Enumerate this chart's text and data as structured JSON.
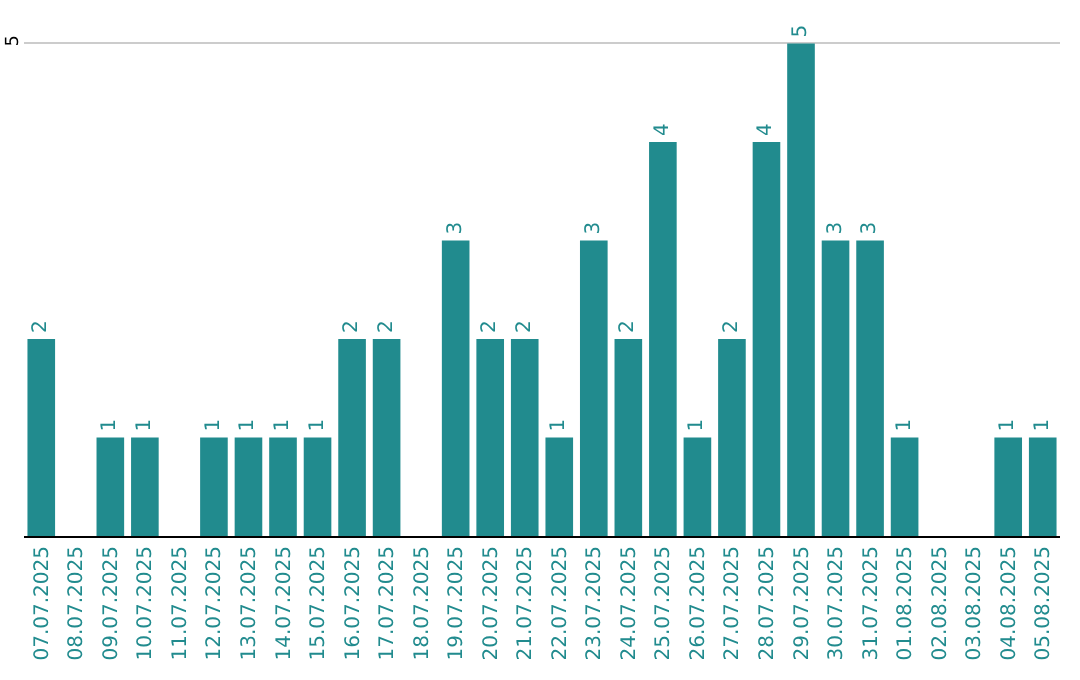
{
  "chart_data": {
    "type": "bar",
    "categories": [
      "07.07.2025",
      "08.07.2025",
      "09.07.2025",
      "10.07.2025",
      "11.07.2025",
      "12.07.2025",
      "13.07.2025",
      "14.07.2025",
      "15.07.2025",
      "16.07.2025",
      "17.07.2025",
      "18.07.2025",
      "19.07.2025",
      "20.07.2025",
      "21.07.2025",
      "22.07.2025",
      "23.07.2025",
      "24.07.2025",
      "25.07.2025",
      "26.07.2025",
      "27.07.2025",
      "28.07.2025",
      "29.07.2025",
      "30.07.2025",
      "31.07.2025",
      "01.08.2025",
      "02.08.2025",
      "03.08.2025",
      "04.08.2025",
      "05.08.2025"
    ],
    "values": [
      2,
      0,
      1,
      1,
      0,
      1,
      1,
      1,
      1,
      2,
      2,
      0,
      3,
      2,
      2,
      1,
      3,
      2,
      4,
      1,
      2,
      4,
      5,
      3,
      3,
      1,
      0,
      0,
      1,
      1
    ],
    "value_labels": [
      "2",
      null,
      "1",
      "1",
      null,
      "1",
      "1",
      "1",
      "1",
      "2",
      "2",
      null,
      "3",
      "2",
      "2",
      "1",
      "3",
      "2",
      "4",
      "1",
      "2",
      "4",
      "5",
      "3",
      "3",
      "1",
      null,
      null,
      "1",
      "1"
    ],
    "color": "#218b8e",
    "ylim": [
      0,
      5.4
    ],
    "yticks": [
      5
    ],
    "grid": "y",
    "legend": false
  }
}
